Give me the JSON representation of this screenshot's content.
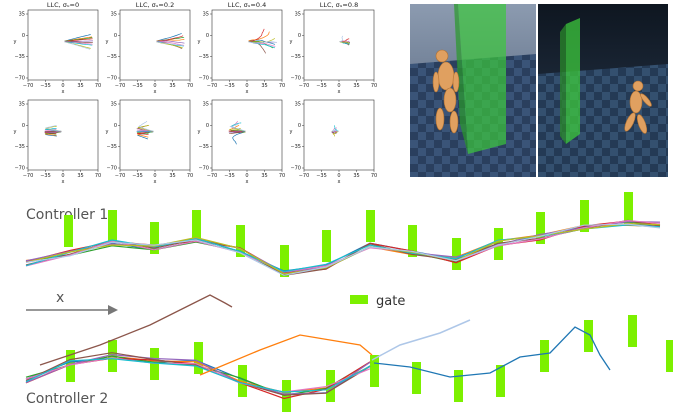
{
  "figure": {
    "panels_top": [
      {
        "title": "LLC, σᵤ=0"
      },
      {
        "title": "LLC, σᵤ=0.2"
      },
      {
        "title": "LLC, σᵤ=0.4"
      },
      {
        "title": "LLC, σᵤ=0.8"
      }
    ],
    "x_ticks": [
      "−70",
      "−35",
      "0",
      "35",
      "70"
    ],
    "y_ticks": [
      "35",
      "0",
      "−35",
      "−70"
    ],
    "y_ticks_bottom": [
      "35",
      "0",
      "−35",
      "−70"
    ],
    "x_axis_label": "x",
    "y_axis_label": "y",
    "controller_1_label": "Controller 1",
    "controller_2_label": "Controller 2",
    "direction_label": "x",
    "legend_gate_label": "gate",
    "colors": {
      "gate": "#7cf000",
      "ground": "#2e4563",
      "wall": "#3cc83c",
      "character": "#e0a060",
      "trajectory_palette": [
        "#1f77b4",
        "#ff7f0e",
        "#2ca02c",
        "#d62728",
        "#9467bd",
        "#8c564b",
        "#e377c2",
        "#17becf",
        "#bcbd22",
        "#aec7e8"
      ]
    }
  }
}
